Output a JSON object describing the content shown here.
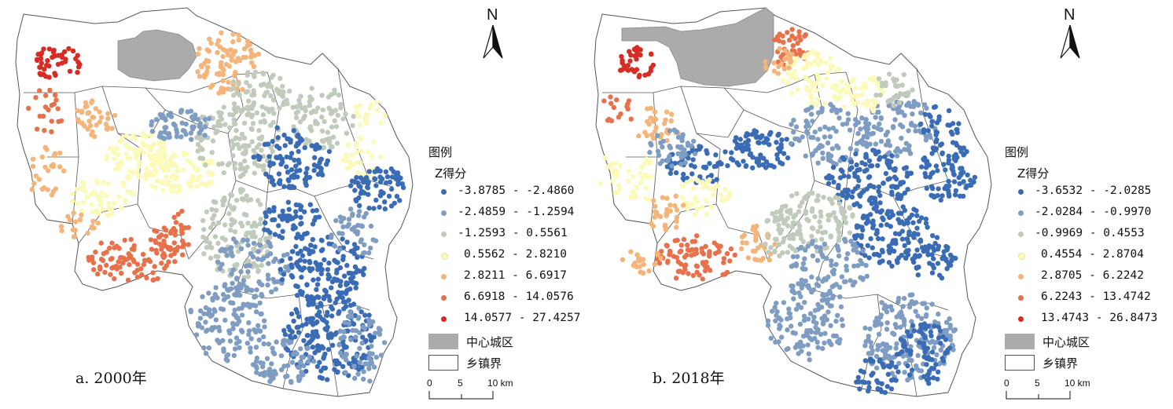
{
  "panels": [
    {
      "id": "a",
      "caption": "a. 2000年",
      "north": "N",
      "legend": {
        "title": "图例",
        "subtitle": "Z得分",
        "classes": [
          {
            "range": "-3.8785 - -2.4860",
            "color": "#3a6cb5"
          },
          {
            "range": "-2.4859 - -1.2594",
            "color": "#7f9dc2"
          },
          {
            "range": "-1.2593 - 0.5561",
            "color": "#c0cbbc"
          },
          {
            "range": "0.5562 - 2.8210",
            "color": "#fbfab9"
          },
          {
            "range": "2.8211 - 6.6917",
            "color": "#f5b479"
          },
          {
            "range": "6.6918 - 14.0576",
            "color": "#e8704a"
          },
          {
            "range": "14.0577 - 27.4257",
            "color": "#d72b23"
          }
        ],
        "city_label": "中心城区",
        "boundary_label": "乡镇界"
      },
      "scale": {
        "labels": [
          "0",
          "5",
          "10 km"
        ]
      }
    },
    {
      "id": "b",
      "caption": "b. 2018年",
      "north": "N",
      "legend": {
        "title": "图例",
        "subtitle": "Z得分",
        "classes": [
          {
            "range": "-3.6532 - -2.0285",
            "color": "#3a6cb5"
          },
          {
            "range": "-2.0284 - -0.9970",
            "color": "#7f9dc2"
          },
          {
            "range": "-0.9969 - 0.4553",
            "color": "#c0cbbc"
          },
          {
            "range": "0.4554 - 2.8704",
            "color": "#fbfab9"
          },
          {
            "range": "2.8705 - 6.2242",
            "color": "#f5b479"
          },
          {
            "range": "6.2243 - 13.4742",
            "color": "#e8704a"
          },
          {
            "range": "13.4743 - 26.8473",
            "color": "#d72b23"
          }
        ],
        "city_label": "中心城区",
        "boundary_label": "乡镇界"
      },
      "scale": {
        "labels": [
          "0",
          "5",
          "10 km"
        ]
      }
    }
  ],
  "colors": {
    "city_fill": "#ababab",
    "boundary": "#555555"
  }
}
